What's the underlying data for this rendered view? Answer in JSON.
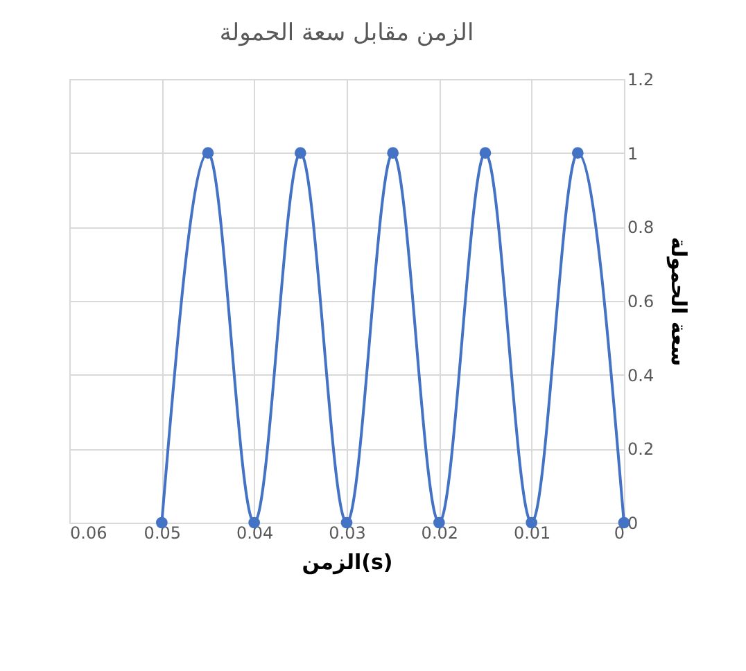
{
  "chart_data": {
    "type": "line",
    "title": "الزمن مقابل سعة الحمولة",
    "xlabel": "الزمن(s)",
    "ylabel": "سعة الحمولة",
    "x": [
      0,
      0.005,
      0.01,
      0.015,
      0.02,
      0.025,
      0.03,
      0.035,
      0.04,
      0.045,
      0.05
    ],
    "series": [
      {
        "color": "#4472c4",
        "values": [
          0,
          1,
          0,
          1,
          0,
          1,
          0,
          1,
          0,
          1,
          0
        ]
      }
    ],
    "xlim": [
      0.06,
      0
    ],
    "xticks": [
      0.06,
      0.05,
      0.04,
      0.03,
      0.02,
      0.01,
      0
    ],
    "ylim": [
      0,
      1.2
    ],
    "yticks": [
      0,
      0.2,
      0.4,
      0.6,
      0.8,
      1,
      1.2
    ],
    "grid": true,
    "marker": "circle"
  }
}
